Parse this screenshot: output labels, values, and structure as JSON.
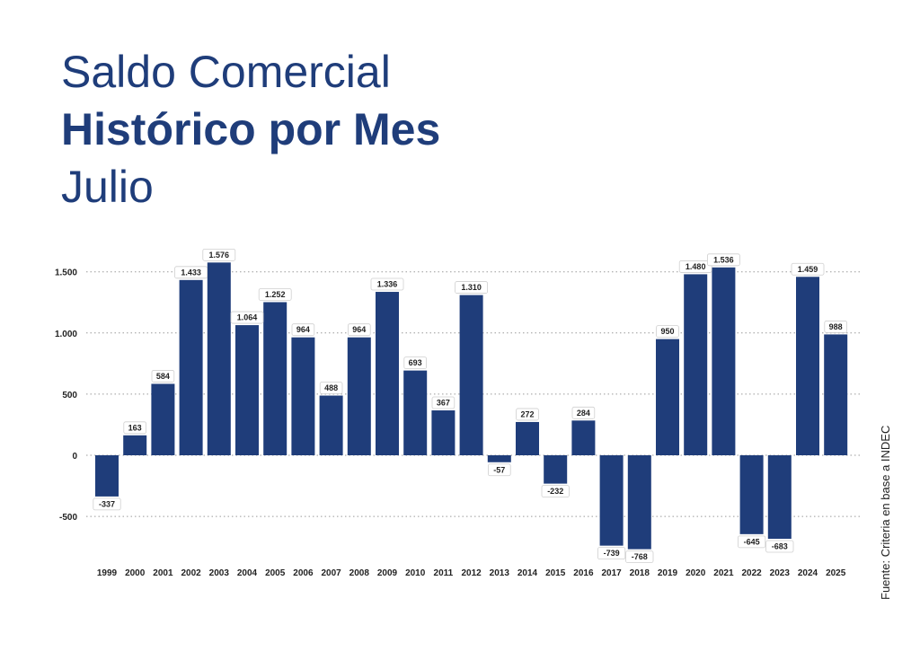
{
  "header": {
    "title_line1": "Saldo Comercial",
    "title_line2": "Histórico por Mes",
    "title_line3": "Julio"
  },
  "source": "Fuente: Criteria en base a INDEC",
  "colors": {
    "bar": "#1f3d7a",
    "title": "#1f3d7a",
    "grid": "#9a9a9a"
  },
  "chart_data": {
    "type": "bar",
    "categories": [
      "1999",
      "2000",
      "2001",
      "2002",
      "2003",
      "2004",
      "2005",
      "2006",
      "2007",
      "2008",
      "2009",
      "2010",
      "2011",
      "2012",
      "2013",
      "2014",
      "2015",
      "2016",
      "2017",
      "2018",
      "2019",
      "2020",
      "2021",
      "2022",
      "2023",
      "2024",
      "2025"
    ],
    "values": [
      -337,
      163,
      584,
      1433,
      1576,
      1064,
      1252,
      964,
      488,
      964,
      1336,
      693,
      367,
      1310,
      -57,
      272,
      -232,
      284,
      -739,
      -768,
      950,
      1480,
      1536,
      -645,
      -683,
      1459,
      988
    ],
    "data_labels": [
      "-337",
      "163",
      "584",
      "1.433",
      "1.576",
      "1.064",
      "1.252",
      "964",
      "488",
      "964",
      "1.336",
      "693",
      "367",
      "1.310",
      "-57",
      "272",
      "-232",
      "284",
      "-739",
      "-768",
      "950",
      "1.480",
      "1.536",
      "-645",
      "-683",
      "1.459",
      "988"
    ],
    "ylim": [
      -800,
      1650
    ],
    "yticks": [
      -500,
      0,
      500,
      1000,
      1500
    ],
    "ytick_labels": [
      "-500",
      "0",
      "500",
      "1.000",
      "1.500"
    ],
    "grid": true
  }
}
